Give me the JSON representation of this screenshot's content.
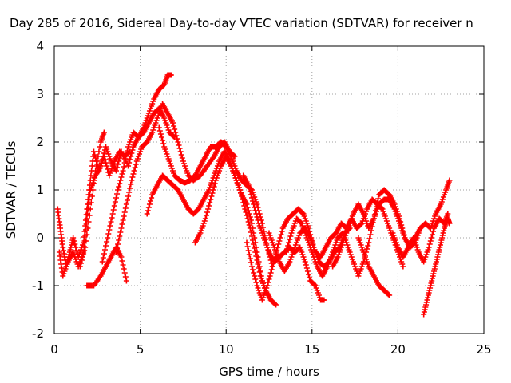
{
  "chart_data": {
    "type": "scatter",
    "title": "Day 285 of 2016, Sidereal Day-to-day VTEC variation (SDTVAR) for receiver n",
    "xlabel": "GPS time / hours",
    "ylabel": "SDTVAR / TECUs",
    "xlim": [
      0,
      25
    ],
    "ylim": [
      -2,
      4
    ],
    "x_ticks": [
      "0",
      "5",
      "10",
      "15",
      "20",
      "25"
    ],
    "y_ticks": [
      "-2",
      "-1",
      "0",
      "1",
      "2",
      "3",
      "4"
    ],
    "grid": true,
    "marker": "plus",
    "series": [
      {
        "color": "#ff0000",
        "points": [
          [
            0.2,
            0.6
          ],
          [
            0.35,
            0.2
          ],
          [
            0.5,
            -0.2
          ],
          [
            0.7,
            -0.6
          ],
          [
            0.9,
            -0.3
          ],
          [
            1.1,
            0.0
          ],
          [
            1.4,
            -0.4
          ],
          [
            1.7,
            -0.1
          ],
          [
            1.9,
            0.6
          ],
          [
            2.1,
            1.2
          ],
          [
            2.3,
            1.8
          ],
          [
            2.6,
            1.4
          ],
          [
            2.9,
            1.7
          ],
          [
            3.2,
            1.3
          ],
          [
            3.5,
            1.6
          ],
          [
            3.8,
            1.8
          ],
          [
            4.1,
            1.7
          ],
          [
            4.4,
            1.8
          ],
          [
            0.3,
            -0.3
          ],
          [
            0.5,
            -0.8
          ],
          [
            0.8,
            -0.5
          ],
          [
            1.1,
            -0.3
          ],
          [
            1.4,
            -0.6
          ],
          [
            1.7,
            -0.3
          ],
          [
            1.9,
            0.4
          ],
          [
            2.1,
            1.0
          ],
          [
            2.4,
            1.3
          ],
          [
            2.7,
            1.5
          ],
          [
            3.0,
            1.9
          ],
          [
            3.3,
            1.6
          ],
          [
            3.6,
            1.4
          ],
          [
            3.9,
            1.8
          ],
          [
            4.3,
            1.5
          ],
          [
            4.6,
            1.9
          ],
          [
            4.9,
            2.1
          ],
          [
            5.2,
            2.2
          ],
          [
            5.5,
            2.4
          ],
          [
            5.8,
            2.6
          ],
          [
            6.1,
            2.7
          ],
          [
            6.4,
            2.5
          ],
          [
            6.7,
            2.2
          ],
          [
            7.0,
            2.1
          ],
          [
            1.9,
            -1.0
          ],
          [
            2.3,
            -1.0
          ],
          [
            2.7,
            -0.8
          ],
          [
            3.0,
            -0.6
          ],
          [
            3.3,
            -0.4
          ],
          [
            3.6,
            -0.2
          ],
          [
            3.9,
            -0.4
          ],
          [
            4.2,
            -0.9
          ],
          [
            1.5,
            -0.6
          ],
          [
            1.8,
            -0.2
          ],
          [
            2.1,
            0.6
          ],
          [
            2.4,
            1.4
          ],
          [
            2.7,
            2.0
          ],
          [
            2.9,
            2.2
          ],
          [
            2.8,
            -0.5
          ],
          [
            3.1,
            0.0
          ],
          [
            3.4,
            0.5
          ],
          [
            3.7,
            1.0
          ],
          [
            4.0,
            1.4
          ],
          [
            4.3,
            1.9
          ],
          [
            4.6,
            2.2
          ],
          [
            4.9,
            2.1
          ],
          [
            5.2,
            2.3
          ],
          [
            5.5,
            2.6
          ],
          [
            5.8,
            2.9
          ],
          [
            6.1,
            3.1
          ],
          [
            6.4,
            3.2
          ],
          [
            6.6,
            3.4
          ],
          [
            6.8,
            3.4
          ],
          [
            3.6,
            -0.3
          ],
          [
            3.9,
            0.2
          ],
          [
            4.2,
            0.7
          ],
          [
            4.5,
            1.2
          ],
          [
            4.8,
            1.6
          ],
          [
            5.1,
            1.9
          ],
          [
            5.4,
            2.0
          ],
          [
            5.7,
            2.2
          ],
          [
            6.0,
            2.5
          ],
          [
            6.3,
            2.8
          ],
          [
            6.6,
            2.6
          ],
          [
            6.9,
            2.4
          ],
          [
            7.2,
            2.0
          ],
          [
            7.5,
            1.6
          ],
          [
            7.8,
            1.3
          ],
          [
            8.1,
            1.2
          ],
          [
            8.5,
            1.3
          ],
          [
            8.9,
            1.5
          ],
          [
            9.3,
            1.7
          ],
          [
            9.6,
            1.9
          ],
          [
            9.9,
            2.0
          ],
          [
            10.2,
            1.8
          ],
          [
            10.5,
            1.7
          ],
          [
            5.4,
            0.5
          ],
          [
            5.7,
            0.9
          ],
          [
            6.0,
            1.1
          ],
          [
            6.3,
            1.3
          ],
          [
            6.6,
            1.2
          ],
          [
            6.9,
            1.1
          ],
          [
            7.2,
            1.0
          ],
          [
            7.5,
            0.8
          ],
          [
            7.8,
            0.6
          ],
          [
            8.1,
            0.5
          ],
          [
            8.4,
            0.6
          ],
          [
            8.7,
            0.8
          ],
          [
            9.0,
            1.0
          ],
          [
            9.3,
            1.3
          ],
          [
            9.6,
            1.6
          ],
          [
            9.9,
            1.8
          ],
          [
            10.2,
            1.6
          ],
          [
            10.5,
            1.3
          ],
          [
            10.8,
            1.0
          ],
          [
            11.1,
            0.6
          ],
          [
            11.4,
            0.2
          ],
          [
            11.7,
            -0.3
          ],
          [
            12.0,
            -0.8
          ],
          [
            12.3,
            -1.1
          ],
          [
            12.6,
            -1.3
          ],
          [
            12.9,
            -1.4
          ],
          [
            6.1,
            2.3
          ],
          [
            6.4,
            1.9
          ],
          [
            6.7,
            1.6
          ],
          [
            7.0,
            1.3
          ],
          [
            7.3,
            1.2
          ],
          [
            7.6,
            1.15
          ],
          [
            7.9,
            1.2
          ],
          [
            8.2,
            1.3
          ],
          [
            8.5,
            1.5
          ],
          [
            8.8,
            1.7
          ],
          [
            9.1,
            1.9
          ],
          [
            9.4,
            1.9
          ],
          [
            9.7,
            2.0
          ],
          [
            10.0,
            1.9
          ],
          [
            10.3,
            1.7
          ],
          [
            10.6,
            1.4
          ],
          [
            10.9,
            1.2
          ],
          [
            11.2,
            1.1
          ],
          [
            11.5,
            1.0
          ],
          [
            11.8,
            0.7
          ],
          [
            12.1,
            0.3
          ],
          [
            12.4,
            -0.2
          ],
          [
            12.7,
            -0.6
          ],
          [
            8.2,
            -0.1
          ],
          [
            8.5,
            0.1
          ],
          [
            8.8,
            0.4
          ],
          [
            9.1,
            0.8
          ],
          [
            9.4,
            1.2
          ],
          [
            9.7,
            1.5
          ],
          [
            10.0,
            1.7
          ],
          [
            10.3,
            1.5
          ],
          [
            10.6,
            1.2
          ],
          [
            10.9,
            0.9
          ],
          [
            11.2,
            0.7
          ],
          [
            11.5,
            0.3
          ],
          [
            11.8,
            -0.3
          ],
          [
            12.1,
            -0.9
          ],
          [
            12.4,
            -1.2
          ],
          [
            11.0,
            1.3
          ],
          [
            11.3,
            1.1
          ],
          [
            11.6,
            0.7
          ],
          [
            11.9,
            0.3
          ],
          [
            12.2,
            0.0
          ],
          [
            12.5,
            -0.3
          ],
          [
            12.8,
            -0.5
          ],
          [
            13.1,
            -0.4
          ],
          [
            13.4,
            -0.3
          ],
          [
            13.7,
            -0.2
          ],
          [
            14.0,
            -0.3
          ],
          [
            14.3,
            -0.2
          ],
          [
            14.6,
            -0.5
          ],
          [
            14.9,
            -0.9
          ],
          [
            15.2,
            -1.0
          ],
          [
            15.5,
            -1.3
          ],
          [
            15.7,
            -1.3
          ],
          [
            11.2,
            -0.1
          ],
          [
            11.5,
            -0.6
          ],
          [
            11.8,
            -1.0
          ],
          [
            12.1,
            -1.3
          ],
          [
            12.4,
            -1.0
          ],
          [
            12.7,
            -0.6
          ],
          [
            13.0,
            -0.2
          ],
          [
            13.3,
            0.2
          ],
          [
            13.6,
            0.4
          ],
          [
            13.9,
            0.5
          ],
          [
            14.2,
            0.6
          ],
          [
            14.5,
            0.5
          ],
          [
            14.8,
            0.2
          ],
          [
            15.1,
            -0.2
          ],
          [
            15.4,
            -0.5
          ],
          [
            15.7,
            -0.6
          ],
          [
            16.0,
            -0.5
          ],
          [
            16.3,
            -0.3
          ],
          [
            16.6,
            -0.2
          ],
          [
            16.9,
            0.1
          ],
          [
            17.2,
            0.2
          ],
          [
            12.5,
            0.1
          ],
          [
            12.8,
            -0.2
          ],
          [
            13.1,
            -0.5
          ],
          [
            13.4,
            -0.7
          ],
          [
            13.7,
            -0.5
          ],
          [
            14.0,
            -0.2
          ],
          [
            14.3,
            0.1
          ],
          [
            14.6,
            0.2
          ],
          [
            14.9,
            0.0
          ],
          [
            15.2,
            -0.3
          ],
          [
            15.5,
            -0.4
          ],
          [
            15.8,
            -0.2
          ],
          [
            16.1,
            0.0
          ],
          [
            16.4,
            0.1
          ],
          [
            16.7,
            0.3
          ],
          [
            17.0,
            0.2
          ],
          [
            17.3,
            0.4
          ],
          [
            17.6,
            0.2
          ],
          [
            17.9,
            0.3
          ],
          [
            18.2,
            0.6
          ],
          [
            18.5,
            0.8
          ],
          [
            18.8,
            0.7
          ],
          [
            19.1,
            0.6
          ],
          [
            19.4,
            0.3
          ],
          [
            19.7,
            0.0
          ],
          [
            20.0,
            -0.3
          ],
          [
            20.3,
            -0.6
          ],
          [
            13.5,
            -0.3
          ],
          [
            13.8,
            0.1
          ],
          [
            14.1,
            0.4
          ],
          [
            14.4,
            0.3
          ],
          [
            14.7,
            0.0
          ],
          [
            15.0,
            -0.3
          ],
          [
            15.3,
            -0.6
          ],
          [
            15.6,
            -0.8
          ],
          [
            15.9,
            -0.6
          ],
          [
            16.2,
            -0.3
          ],
          [
            16.5,
            0.0
          ],
          [
            16.8,
            0.1
          ],
          [
            17.1,
            -0.2
          ],
          [
            17.4,
            -0.5
          ],
          [
            17.7,
            -0.8
          ],
          [
            18.0,
            -0.5
          ],
          [
            18.3,
            -0.1
          ],
          [
            18.6,
            0.4
          ],
          [
            18.9,
            0.7
          ],
          [
            19.2,
            0.8
          ],
          [
            19.5,
            0.8
          ],
          [
            19.8,
            0.6
          ],
          [
            20.1,
            0.3
          ],
          [
            20.4,
            0.0
          ],
          [
            20.7,
            -0.2
          ],
          [
            21.0,
            0.0
          ],
          [
            21.3,
            0.2
          ],
          [
            16.2,
            -0.6
          ],
          [
            16.5,
            -0.4
          ],
          [
            16.8,
            -0.1
          ],
          [
            17.1,
            0.2
          ],
          [
            17.4,
            0.5
          ],
          [
            17.7,
            0.7
          ],
          [
            18.0,
            0.5
          ],
          [
            18.3,
            0.2
          ],
          [
            18.6,
            0.4
          ],
          [
            18.9,
            0.9
          ],
          [
            19.2,
            1.0
          ],
          [
            19.5,
            0.9
          ],
          [
            19.8,
            0.7
          ],
          [
            20.1,
            0.4
          ],
          [
            20.4,
            0.0
          ],
          [
            20.7,
            -0.2
          ],
          [
            21.0,
            -0.1
          ],
          [
            21.3,
            0.2
          ],
          [
            21.6,
            0.3
          ],
          [
            21.9,
            0.2
          ],
          [
            22.2,
            0.5
          ],
          [
            22.5,
            0.7
          ],
          [
            22.8,
            1.0
          ],
          [
            23.0,
            1.2
          ],
          [
            17.7,
            0.0
          ],
          [
            18.0,
            -0.3
          ],
          [
            18.3,
            -0.6
          ],
          [
            18.6,
            -0.8
          ],
          [
            18.9,
            -1.0
          ],
          [
            19.2,
            -1.1
          ],
          [
            19.5,
            -1.2
          ],
          [
            19.7,
            0.1
          ],
          [
            20.0,
            -0.2
          ],
          [
            20.3,
            -0.4
          ],
          [
            20.6,
            -0.2
          ],
          [
            20.9,
            0.0
          ],
          [
            21.2,
            -0.3
          ],
          [
            21.5,
            -0.5
          ],
          [
            21.8,
            -0.2
          ],
          [
            22.1,
            0.2
          ],
          [
            22.4,
            0.4
          ],
          [
            22.7,
            0.3
          ],
          [
            22.9,
            0.5
          ],
          [
            21.5,
            -1.6
          ],
          [
            21.7,
            -1.3
          ],
          [
            21.9,
            -1.0
          ],
          [
            22.1,
            -0.7
          ],
          [
            22.3,
            -0.4
          ],
          [
            22.5,
            -0.1
          ],
          [
            22.7,
            0.2
          ],
          [
            22.9,
            0.4
          ],
          [
            23.0,
            0.3
          ]
        ]
      }
    ]
  }
}
